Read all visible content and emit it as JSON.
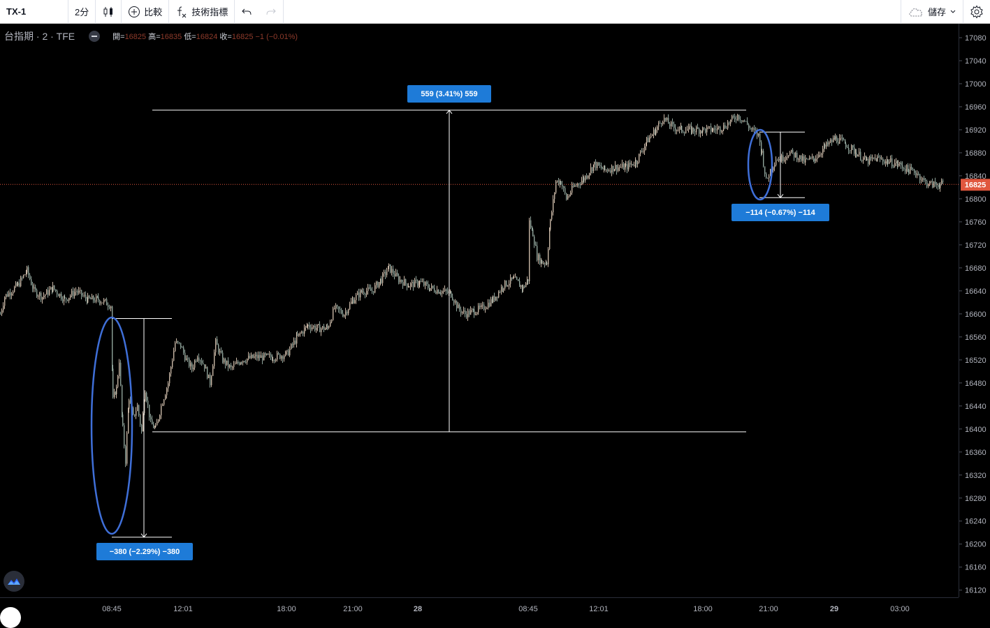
{
  "toolbar": {
    "symbol": "TX-1",
    "interval": "2分",
    "compare_label": "比較",
    "indicators_label": "技術指標",
    "save_label": "儲存"
  },
  "legend": {
    "title": "台指期 · 2 · TFE",
    "open_label": "開=",
    "open": "16825",
    "high_label": "高=",
    "high": "16835",
    "low_label": "低=",
    "low": "16824",
    "close_label": "收=",
    "close": "16825",
    "change": "−1 (−0.01%)"
  },
  "colors": {
    "background": "#000000",
    "candle_up": "#c9b7a6",
    "candle_down": "#8fa39a",
    "measure_line": "#ffffff",
    "measure_label_bg": "#1e7bd8",
    "ellipse": "#3f6fd8",
    "last_price_line": "#e0573e",
    "last_price_badge": "#e0573e"
  },
  "chart_data": {
    "type": "candlestick",
    "symbol": "TX-1",
    "ylim": [
      16100,
      17100
    ],
    "y_ticks": [
      17080,
      17040,
      17000,
      16960,
      16920,
      16880,
      16840,
      16800,
      16760,
      16720,
      16680,
      16640,
      16600,
      16560,
      16520,
      16480,
      16440,
      16400,
      16360,
      16320,
      16280,
      16240,
      16200,
      16160,
      16120
    ],
    "x_tick_labels": [
      "08:45",
      "12:01",
      "18:00",
      "21:00",
      "28",
      "08:45",
      "12:01",
      "18:00",
      "21:00",
      "29",
      "03:00"
    ],
    "last_price": 16825,
    "price_path": [
      [
        0,
        16600
      ],
      [
        6,
        16630
      ],
      [
        25,
        16650
      ],
      [
        38,
        16675
      ],
      [
        48,
        16640
      ],
      [
        60,
        16630
      ],
      [
        75,
        16645
      ],
      [
        92,
        16625
      ],
      [
        108,
        16640
      ],
      [
        125,
        16625
      ],
      [
        140,
        16625
      ],
      [
        150,
        16620
      ],
      [
        158,
        16615
      ],
      [
        161,
        16450
      ],
      [
        166,
        16470
      ],
      [
        170,
        16520
      ],
      [
        175,
        16400
      ],
      [
        179,
        16345
      ],
      [
        184,
        16455
      ],
      [
        190,
        16420
      ],
      [
        196,
        16440
      ],
      [
        202,
        16395
      ],
      [
        207,
        16470
      ],
      [
        215,
        16410
      ],
      [
        222,
        16400
      ],
      [
        230,
        16440
      ],
      [
        240,
        16480
      ],
      [
        250,
        16550
      ],
      [
        258,
        16545
      ],
      [
        266,
        16520
      ],
      [
        274,
        16505
      ],
      [
        282,
        16530
      ],
      [
        292,
        16510
      ],
      [
        300,
        16480
      ],
      [
        308,
        16550
      ],
      [
        318,
        16520
      ],
      [
        330,
        16505
      ],
      [
        345,
        16520
      ],
      [
        365,
        16525
      ],
      [
        390,
        16525
      ],
      [
        410,
        16530
      ],
      [
        425,
        16560
      ],
      [
        440,
        16580
      ],
      [
        455,
        16575
      ],
      [
        468,
        16575
      ],
      [
        478,
        16610
      ],
      [
        492,
        16600
      ],
      [
        505,
        16625
      ],
      [
        518,
        16640
      ],
      [
        532,
        16640
      ],
      [
        545,
        16660
      ],
      [
        556,
        16680
      ],
      [
        570,
        16660
      ],
      [
        585,
        16650
      ],
      [
        600,
        16655
      ],
      [
        615,
        16645
      ],
      [
        630,
        16640
      ],
      [
        645,
        16635
      ],
      [
        655,
        16610
      ],
      [
        665,
        16600
      ],
      [
        678,
        16605
      ],
      [
        690,
        16610
      ],
      [
        705,
        16625
      ],
      [
        720,
        16650
      ],
      [
        735,
        16660
      ],
      [
        748,
        16645
      ],
      [
        755,
        16660
      ],
      [
        757,
        16760
      ],
      [
        762,
        16740
      ],
      [
        768,
        16700
      ],
      [
        775,
        16690
      ],
      [
        782,
        16690
      ],
      [
        787,
        16760
      ],
      [
        795,
        16830
      ],
      [
        802,
        16830
      ],
      [
        810,
        16800
      ],
      [
        820,
        16820
      ],
      [
        835,
        16835
      ],
      [
        850,
        16860
      ],
      [
        865,
        16850
      ],
      [
        880,
        16855
      ],
      [
        895,
        16855
      ],
      [
        910,
        16865
      ],
      [
        925,
        16900
      ],
      [
        938,
        16920
      ],
      [
        948,
        16940
      ],
      [
        962,
        16925
      ],
      [
        975,
        16920
      ],
      [
        990,
        16920
      ],
      [
        1005,
        16920
      ],
      [
        1020,
        16920
      ],
      [
        1035,
        16925
      ],
      [
        1045,
        16935
      ],
      [
        1055,
        16945
      ],
      [
        1065,
        16935
      ],
      [
        1075,
        16920
      ],
      [
        1085,
        16910
      ],
      [
        1090,
        16880
      ],
      [
        1096,
        16830
      ],
      [
        1102,
        16850
      ],
      [
        1110,
        16870
      ],
      [
        1118,
        16870
      ],
      [
        1128,
        16880
      ],
      [
        1140,
        16875
      ],
      [
        1150,
        16865
      ],
      [
        1165,
        16870
      ],
      [
        1180,
        16890
      ],
      [
        1195,
        16905
      ],
      [
        1210,
        16895
      ],
      [
        1225,
        16880
      ],
      [
        1240,
        16865
      ],
      [
        1255,
        16870
      ],
      [
        1270,
        16865
      ],
      [
        1285,
        16860
      ],
      [
        1300,
        16850
      ],
      [
        1312,
        16845
      ],
      [
        1322,
        16830
      ],
      [
        1332,
        16825
      ],
      [
        1345,
        16825
      ],
      [
        1350,
        16825
      ]
    ],
    "measurements": [
      {
        "label": "−380 (−2.29%) −380",
        "from": 16592,
        "to": 16212
      },
      {
        "label": "559 (3.41%) 559",
        "from": 16395,
        "to": 16954
      },
      {
        "label": "−114 (−0.67%) −114",
        "from": 16916,
        "to": 16802
      }
    ]
  }
}
